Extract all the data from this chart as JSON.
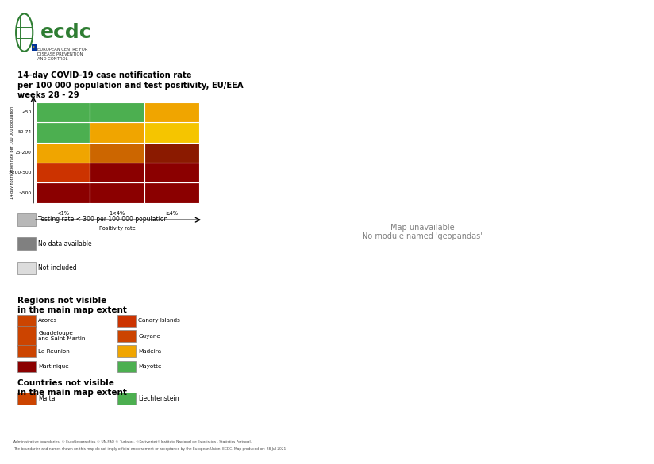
{
  "title_line1": "14-day COVID-19 case notification rate",
  "title_line2": "per 100 000 population and test positivity, EU/EEA",
  "title_line3": "weeks 28 - 29",
  "matrix_colors": [
    [
      "#8B0000",
      "#8B0000",
      "#8B0000"
    ],
    [
      "#CC3300",
      "#8B0000",
      "#8B0000"
    ],
    [
      "#F0A500",
      "#CC6600",
      "#8B1A00"
    ],
    [
      "#4CAF50",
      "#F0A500",
      "#F5C500"
    ],
    [
      "#4CAF50",
      "#4CAF50",
      "#F0A500"
    ]
  ],
  "y_labels": [
    ">500",
    ">200-500",
    "75-200",
    "50-74",
    "<50"
  ],
  "x_labels": [
    "<1%",
    "1<4%",
    "≥4%"
  ],
  "x_axis_label": "Positivity rate",
  "y_axis_label": "14-day notification rate per 100 000 population",
  "legend_special": [
    {
      "color": "#B8B8B8",
      "label": "Testing rate < 300 per 100 000 population"
    },
    {
      "color": "#808080",
      "label": "No data available"
    },
    {
      "color": "#DCDCDC",
      "label": "Not included"
    }
  ],
  "region_colors_labels": [
    [
      "#CC4400",
      "Azores"
    ],
    [
      "#CC3300",
      "Canary Islands"
    ],
    [
      "#CC4400",
      "Guadeloupe\nand Saint Martin"
    ],
    [
      "#CC4400",
      "Guyane"
    ],
    [
      "#CC4400",
      "La Reunion"
    ],
    [
      "#F0A500",
      "Madeira"
    ],
    [
      "#8B0000",
      "Martinique"
    ],
    [
      "#4CAF50",
      "Mayotte"
    ]
  ],
  "country_colors_labels": [
    [
      "#CC4400",
      "Malta"
    ],
    [
      "#4CAF50",
      "Liechtenstein"
    ]
  ],
  "footer_line1": "Administrative boundaries: © EuroGeographics © UN-FAO © Turkstat. ©Kartverket©Instituto Nacional de Estatistica - Statistics Portugal.",
  "footer_line2": "The boundaries and names shown on this map do not imply official endorsement or acceptance by the European Union. ECDC. Map produced on: 28 Jul 2021",
  "bg_color": "#FFFFFF",
  "sea_color": "#C8D8E8",
  "border_color": "#FFFFFF"
}
